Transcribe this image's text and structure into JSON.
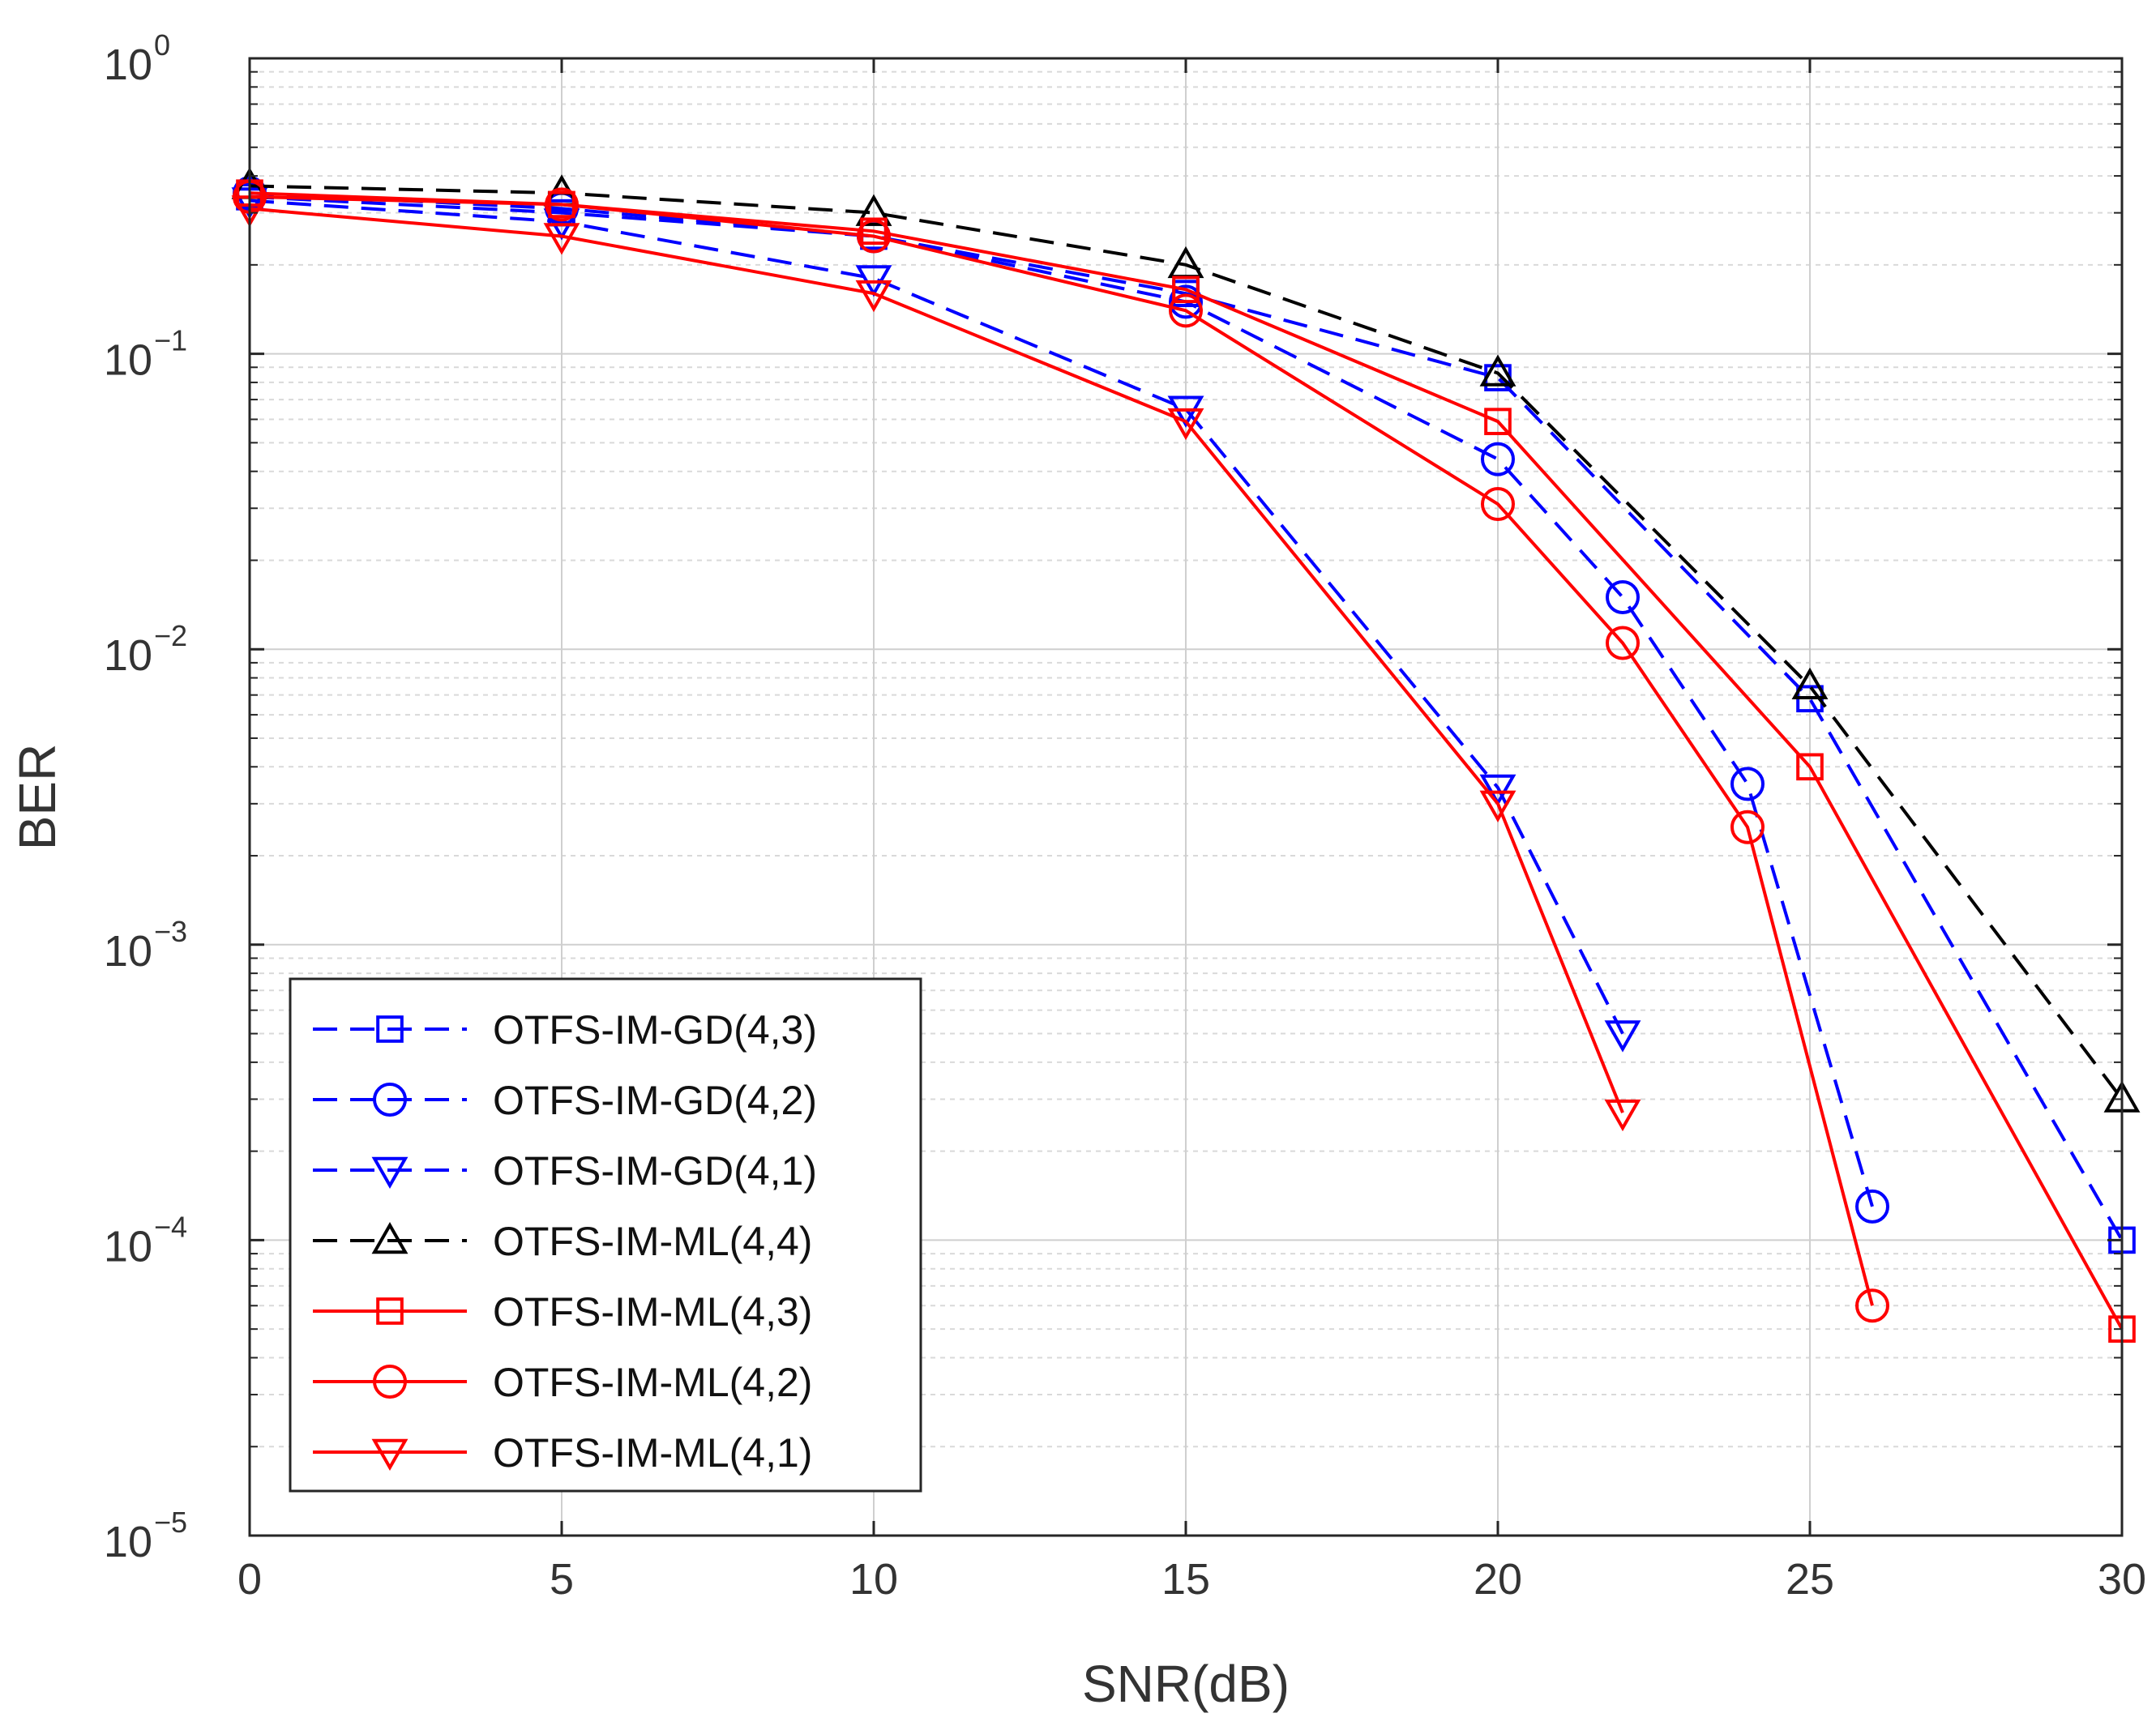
{
  "chart_data": {
    "type": "line",
    "xlabel": "SNR(dB)",
    "ylabel": "BER",
    "xlim": [
      0,
      30
    ],
    "ylim": [
      1e-05,
      1
    ],
    "yscale": "log",
    "grid": true,
    "minor_grid": true,
    "legend_position": "lower-left",
    "x_ticks": [
      "0",
      "5",
      "10",
      "15",
      "20",
      "25",
      "30"
    ],
    "y_ticks": [
      {
        "value": 1,
        "base": "10",
        "exp": "0"
      },
      {
        "value": 0.1,
        "base": "10",
        "exp": "−1"
      },
      {
        "value": 0.01,
        "base": "10",
        "exp": "−2"
      },
      {
        "value": 0.001,
        "base": "10",
        "exp": "−3"
      },
      {
        "value": 0.0001,
        "base": "10",
        "exp": "−4"
      },
      {
        "value": 1e-05,
        "base": "10",
        "exp": "−5"
      }
    ],
    "series": [
      {
        "name": "OTFS-IM-GD(4,3)",
        "color": "#0000ff",
        "dash": "dashed",
        "marker": "square",
        "x": [
          0,
          5,
          10,
          15,
          20,
          25,
          30
        ],
        "y": [
          0.34,
          0.3,
          0.25,
          0.16,
          0.083,
          0.0068,
          0.0001
        ]
      },
      {
        "name": "OTFS-IM-GD(4,2)",
        "color": "#0000ff",
        "dash": "dashed",
        "marker": "circle",
        "x": [
          0,
          5,
          10,
          15,
          20,
          22,
          24,
          26
        ],
        "y": [
          0.35,
          0.31,
          0.25,
          0.15,
          0.044,
          0.015,
          0.0035,
          0.00013
        ]
      },
      {
        "name": "OTFS-IM-GD(4,1)",
        "color": "#0000ff",
        "dash": "dashed",
        "marker": "triangle-down",
        "x": [
          0,
          5,
          10,
          15,
          20,
          22
        ],
        "y": [
          0.33,
          0.28,
          0.18,
          0.065,
          0.0034,
          0.0005
        ]
      },
      {
        "name": "OTFS-IM-ML(4,4)",
        "color": "#000000",
        "dash": "dashed",
        "marker": "triangle-up",
        "x": [
          0,
          5,
          10,
          15,
          20,
          25,
          30
        ],
        "y": [
          0.37,
          0.35,
          0.3,
          0.2,
          0.086,
          0.0075,
          0.0003
        ]
      },
      {
        "name": "OTFS-IM-ML(4,3)",
        "color": "#ff0000",
        "dash": "solid",
        "marker": "square",
        "x": [
          0,
          5,
          10,
          15,
          20,
          25,
          30
        ],
        "y": [
          0.35,
          0.32,
          0.26,
          0.165,
          0.059,
          0.004,
          5e-05
        ]
      },
      {
        "name": "OTFS-IM-ML(4,2)",
        "color": "#ff0000",
        "dash": "solid",
        "marker": "circle",
        "x": [
          0,
          5,
          10,
          15,
          20,
          22,
          24,
          26
        ],
        "y": [
          0.34,
          0.32,
          0.25,
          0.14,
          0.031,
          0.0105,
          0.0025,
          6e-05
        ]
      },
      {
        "name": "OTFS-IM-ML(4,1)",
        "color": "#ff0000",
        "dash": "solid",
        "marker": "triangle-down",
        "x": [
          0,
          5,
          10,
          15,
          20,
          22
        ],
        "y": [
          0.31,
          0.25,
          0.16,
          0.059,
          0.003,
          0.00027
        ]
      }
    ]
  }
}
